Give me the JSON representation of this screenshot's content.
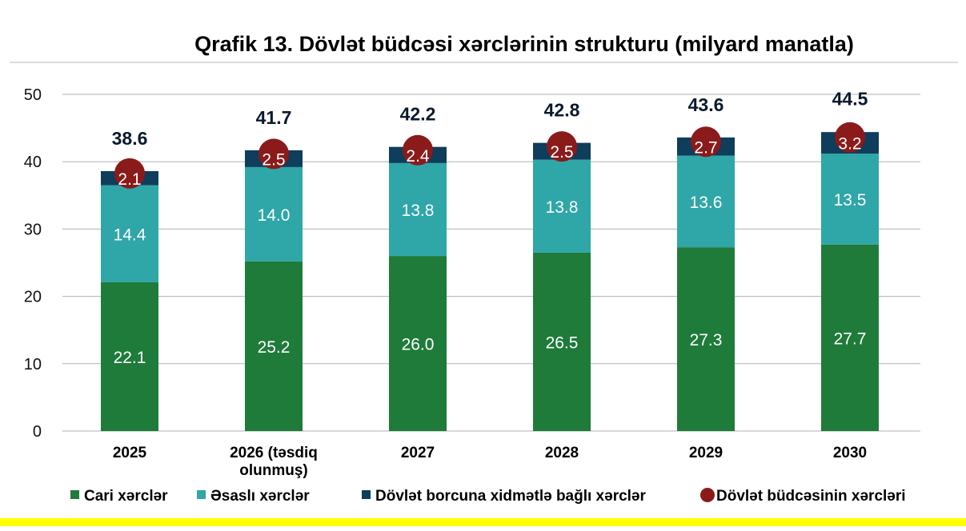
{
  "chart_data": {
    "type": "bar",
    "stacked": true,
    "title": "Qrafik 13. Dövlət büdcəsi xərclərinin strukturu  (milyard manatla)",
    "categories": [
      "2025",
      "2026 (təsdiq olunmuş)",
      "2027",
      "2028",
      "2029",
      "2030"
    ],
    "category_lines": [
      [
        "2025"
      ],
      [
        "2026 (təsdiq",
        "olunmuş)"
      ],
      [
        "2027"
      ],
      [
        "2028"
      ],
      [
        "2029"
      ],
      [
        "2030"
      ]
    ],
    "series": [
      {
        "name": "Cari xərclər",
        "color": "#1e7b3a",
        "values": [
          22.1,
          25.2,
          26.0,
          26.5,
          27.3,
          27.7
        ],
        "labels": [
          "22.1",
          "25.2",
          "26.0",
          "26.5",
          "27.3",
          "27.7"
        ]
      },
      {
        "name": "Əsaslı xərclər",
        "color": "#2fa6a8",
        "values": [
          14.4,
          14.0,
          13.8,
          13.8,
          13.6,
          13.5
        ],
        "labels": [
          "14.4",
          "14.0",
          "13.8",
          "13.8",
          "13.6",
          "13.5"
        ]
      },
      {
        "name": "Dövlət borcuna xidmətlə bağlı xərclər",
        "color": "#0f3d5c",
        "values": [
          2.1,
          2.5,
          2.4,
          2.5,
          2.7,
          3.2
        ],
        "labels": [
          "2.1",
          "2.5",
          "2.4",
          "2.5",
          "2.7",
          "3.2"
        ]
      }
    ],
    "totals": {
      "name": "Dövlət büdcəsinin xərcləri",
      "color": "#8b1a1a",
      "values": [
        38.6,
        41.7,
        42.2,
        42.8,
        43.6,
        44.5
      ],
      "labels": [
        "38.6",
        "41.7",
        "42.2",
        "42.8",
        "43.6",
        "44.5"
      ]
    },
    "yticks": [
      "0",
      "10",
      "20",
      "30",
      "40",
      "50"
    ],
    "ylim": [
      0,
      50
    ],
    "grid": true,
    "legend_position": "bottom",
    "xlabel": "",
    "ylabel": ""
  },
  "colors": {
    "grid": "#b0b0b0",
    "bottom_stripe": "#ffff00",
    "title_rule": "#d0d0d0"
  }
}
